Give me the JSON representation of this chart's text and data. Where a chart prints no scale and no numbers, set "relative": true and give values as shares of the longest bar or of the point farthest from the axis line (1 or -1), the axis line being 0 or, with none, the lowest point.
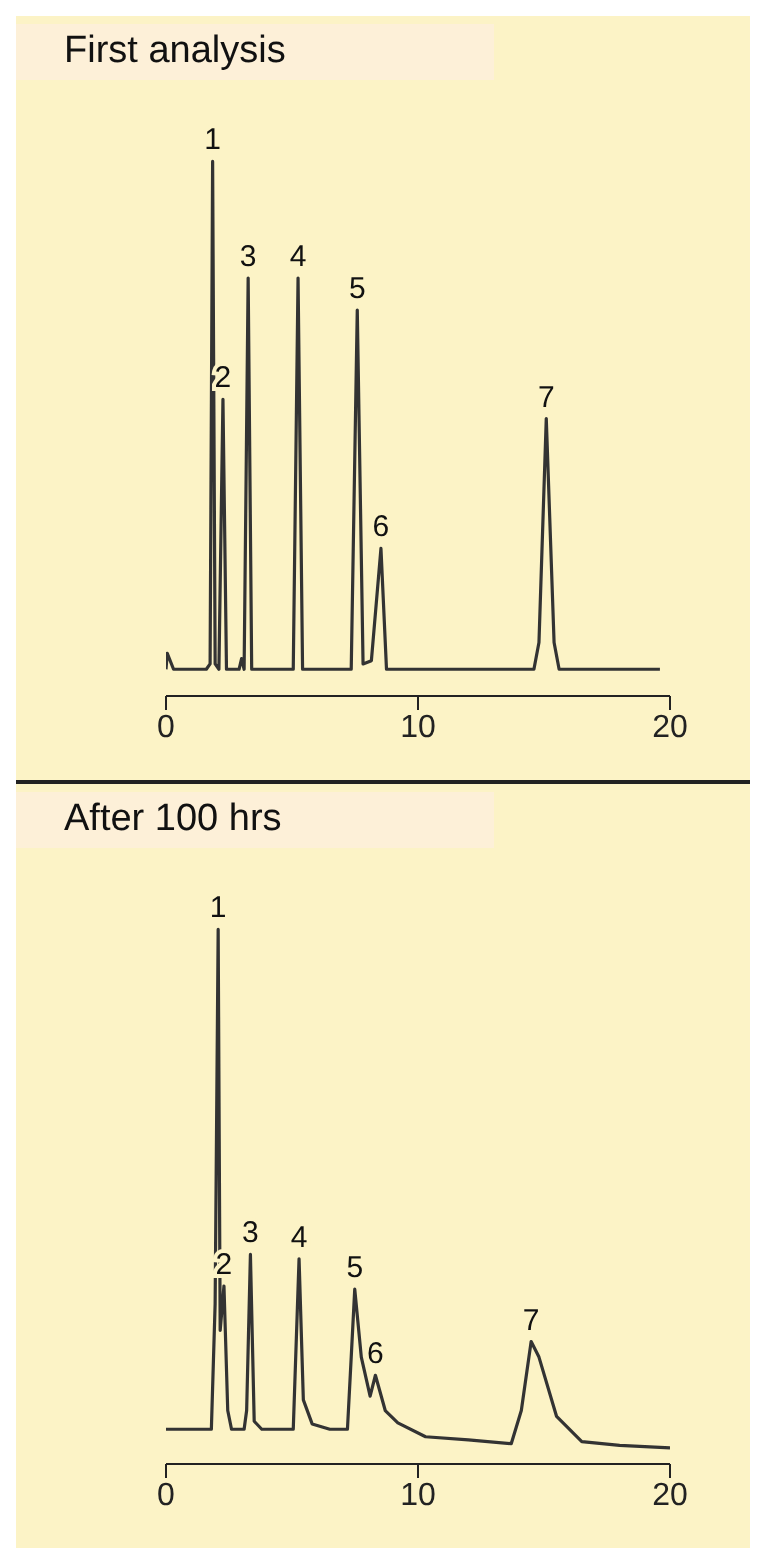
{
  "chart_data": [
    {
      "type": "line",
      "title": "First analysis",
      "relative": true,
      "xlim": [
        0,
        20
      ],
      "xticks": [
        0,
        10,
        20
      ],
      "grid": false,
      "legend": false,
      "marker": "none",
      "line_style": "solid",
      "x": [
        0,
        0.05,
        0.3,
        1.6,
        1.75,
        1.85,
        1.95,
        2.1,
        2.26,
        2.4,
        2.9,
        3.0,
        3.1,
        3.26,
        3.4,
        5.05,
        5.24,
        5.42,
        7.35,
        7.59,
        7.82,
        8.15,
        8.53,
        8.75,
        14.6,
        14.8,
        15.09,
        15.4,
        15.6,
        19.6
      ],
      "series": [
        {
          "color": "#333333",
          "values": [
            0.05,
            0.08,
            0.05,
            0.05,
            0.06,
            1.0,
            0.06,
            0.05,
            0.555,
            0.05,
            0.05,
            0.07,
            0.05,
            0.782,
            0.05,
            0.05,
            0.782,
            0.05,
            0.05,
            0.722,
            0.06,
            0.066,
            0.276,
            0.05,
            0.05,
            0.1,
            0.519,
            0.1,
            0.05,
            0.05
          ]
        }
      ],
      "annotations": [
        {
          "text": "1",
          "x": 1.85,
          "y": 1.0
        },
        {
          "text": "2",
          "x": 2.26,
          "y": 0.555
        },
        {
          "text": "3",
          "x": 3.26,
          "y": 0.782
        },
        {
          "text": "4",
          "x": 5.24,
          "y": 0.782
        },
        {
          "text": "5",
          "x": 7.59,
          "y": 0.722
        },
        {
          "text": "6",
          "x": 8.53,
          "y": 0.276
        },
        {
          "text": "7",
          "x": 15.09,
          "y": 0.519
        }
      ]
    },
    {
      "type": "line",
      "title": "After 100 hrs",
      "relative": true,
      "xlim": [
        0,
        20
      ],
      "xticks": [
        0,
        10,
        20
      ],
      "grid": false,
      "legend": false,
      "marker": "none",
      "line_style": "solid",
      "x": [
        0,
        1.8,
        1.95,
        2.07,
        2.15,
        2.3,
        2.45,
        2.6,
        3.1,
        3.2,
        3.35,
        3.5,
        3.8,
        5.05,
        5.28,
        5.45,
        5.8,
        6.5,
        7.2,
        7.35,
        7.49,
        7.75,
        8.1,
        8.31,
        8.7,
        9.2,
        10.3,
        12,
        13.7,
        14.1,
        14.49,
        14.8,
        15.5,
        16.5,
        18,
        20
      ],
      "series": [
        {
          "color": "#333333",
          "values": [
            0.065,
            0.065,
            0.3,
            1.0,
            0.25,
            0.333,
            0.1,
            0.065,
            0.065,
            0.1,
            0.392,
            0.08,
            0.065,
            0.065,
            0.384,
            0.12,
            0.075,
            0.065,
            0.065,
            0.2,
            0.327,
            0.2,
            0.127,
            0.166,
            0.1,
            0.077,
            0.051,
            0.045,
            0.038,
            0.1,
            0.229,
            0.2,
            0.089,
            0.042,
            0.035,
            0.03
          ]
        }
      ],
      "annotations": [
        {
          "text": "1",
          "x": 2.07,
          "y": 1.0
        },
        {
          "text": "2",
          "x": 2.3,
          "y": 0.333
        },
        {
          "text": "3",
          "x": 3.35,
          "y": 0.392
        },
        {
          "text": "4",
          "x": 5.28,
          "y": 0.384
        },
        {
          "text": "5",
          "x": 7.49,
          "y": 0.327
        },
        {
          "text": "6",
          "x": 8.31,
          "y": 0.166
        },
        {
          "text": "7",
          "x": 14.49,
          "y": 0.229
        }
      ]
    }
  ]
}
